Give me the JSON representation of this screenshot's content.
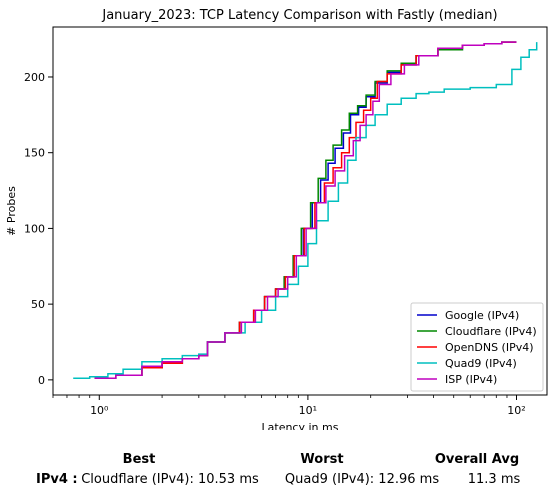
{
  "chart_data": {
    "type": "line",
    "title": "January_2023: TCP Latency Comparison with Fastly (median)",
    "xlabel": "Latency in ms",
    "ylabel": "# Probes",
    "xscale": "log",
    "xlim": [
      0.6,
      140
    ],
    "ylim": [
      -10,
      233
    ],
    "x_ticks": [
      {
        "value": 1,
        "label": "10⁰"
      },
      {
        "value": 10,
        "label": "10¹"
      },
      {
        "value": 100,
        "label": "10²"
      }
    ],
    "y_ticks": [
      0,
      50,
      100,
      150,
      200
    ],
    "grid": false,
    "legend_position": "lower-right",
    "series": [
      {
        "name": "Google (IPv4)",
        "color": "#0000cc",
        "x": [
          0.95,
          1.2,
          1.6,
          2.0,
          2.5,
          3.0,
          3.3,
          4.0,
          4.7,
          5.5,
          6.2,
          7.0,
          7.7,
          8.5,
          9.5,
          10.5,
          11.5,
          12.5,
          13.5,
          14.8,
          16.0,
          17.5,
          19.0,
          21.0,
          24.0,
          28.0,
          33.0,
          42.0,
          55.0,
          70.0,
          85.0,
          100.0
        ],
        "y": [
          1,
          3,
          8,
          11,
          14,
          16,
          25,
          31,
          38,
          46,
          55,
          60,
          68,
          82,
          100,
          117,
          132,
          143,
          153,
          163,
          175,
          180,
          187,
          196,
          203,
          208,
          214,
          218,
          221,
          222,
          223,
          223
        ]
      },
      {
        "name": "Cloudflare (IPv4)",
        "color": "#008800",
        "x": [
          0.95,
          1.2,
          1.6,
          2.0,
          2.5,
          3.0,
          3.3,
          4.0,
          4.7,
          5.5,
          6.2,
          7.0,
          7.7,
          8.5,
          9.3,
          10.3,
          11.2,
          12.2,
          13.2,
          14.5,
          15.8,
          17.3,
          19.0,
          21.0,
          24.0,
          28.0,
          33.0,
          42.0,
          55.0,
          70.0,
          85.0,
          100.0
        ],
        "y": [
          1,
          3,
          8,
          11,
          14,
          16,
          25,
          31,
          38,
          46,
          55,
          60,
          68,
          82,
          100,
          117,
          133,
          145,
          155,
          165,
          176,
          181,
          188,
          197,
          204,
          209,
          214,
          218,
          221,
          222,
          223,
          223
        ]
      },
      {
        "name": "OpenDNS (IPv4)",
        "color": "#ff0000",
        "x": [
          0.95,
          1.2,
          1.6,
          2.0,
          2.5,
          3.0,
          3.3,
          4.0,
          4.7,
          5.5,
          6.2,
          7.0,
          7.8,
          8.6,
          9.6,
          10.8,
          12.0,
          13.2,
          14.5,
          15.8,
          17.0,
          18.5,
          20.0,
          21.5,
          24.0,
          28.0,
          33.0,
          42.0,
          55.0,
          70.0,
          85.0,
          100.0
        ],
        "y": [
          1,
          3,
          8,
          11,
          14,
          16,
          25,
          31,
          38,
          46,
          55,
          60,
          68,
          82,
          100,
          117,
          130,
          140,
          150,
          160,
          170,
          178,
          186,
          197,
          202,
          208,
          214,
          219,
          221,
          222,
          223,
          223
        ]
      },
      {
        "name": "Quad9 (IPv4)",
        "color": "#00bfbf",
        "x": [
          0.75,
          0.9,
          1.1,
          1.3,
          1.6,
          2.0,
          2.5,
          3.0,
          3.3,
          4.0,
          5.0,
          6.0,
          7.0,
          8.0,
          9.0,
          10.0,
          11.0,
          12.5,
          14.0,
          15.5,
          17.0,
          19.0,
          21.0,
          24.0,
          28.0,
          33.0,
          38.0,
          45.0,
          60.0,
          80.0,
          95.0,
          105.0,
          115.0,
          125.0
        ],
        "y": [
          1,
          2,
          4,
          7,
          12,
          14,
          16,
          17,
          25,
          31,
          38,
          46,
          55,
          63,
          75,
          90,
          105,
          118,
          130,
          145,
          160,
          168,
          175,
          182,
          186,
          189,
          190,
          192,
          193,
          195,
          205,
          213,
          218,
          223
        ]
      },
      {
        "name": "ISP (IPv4)",
        "color": "#bf00bf",
        "x": [
          0.95,
          1.2,
          1.6,
          2.0,
          2.5,
          3.0,
          3.3,
          4.0,
          4.8,
          5.6,
          6.4,
          7.2,
          8.0,
          8.8,
          9.8,
          11.0,
          12.2,
          13.5,
          15.0,
          16.5,
          17.8,
          19.0,
          20.5,
          22.0,
          25.0,
          29.0,
          34.0,
          42.0,
          55.0,
          70.0,
          85.0,
          100.0
        ],
        "y": [
          1,
          3,
          9,
          12,
          14,
          16,
          25,
          31,
          38,
          46,
          55,
          60,
          68,
          82,
          100,
          117,
          128,
          138,
          148,
          158,
          168,
          175,
          184,
          195,
          202,
          208,
          214,
          219,
          221,
          222,
          223,
          223
        ]
      }
    ]
  },
  "summary": {
    "best_header": "Best",
    "worst_header": "Worst",
    "avg_header": "Overall Avg",
    "row_label": "IPv4 :",
    "best_value": "Cloudflare (IPv4): 10.53 ms",
    "worst_value": "Quad9 (IPv4): 12.96 ms",
    "avg_value": "11.3 ms"
  }
}
